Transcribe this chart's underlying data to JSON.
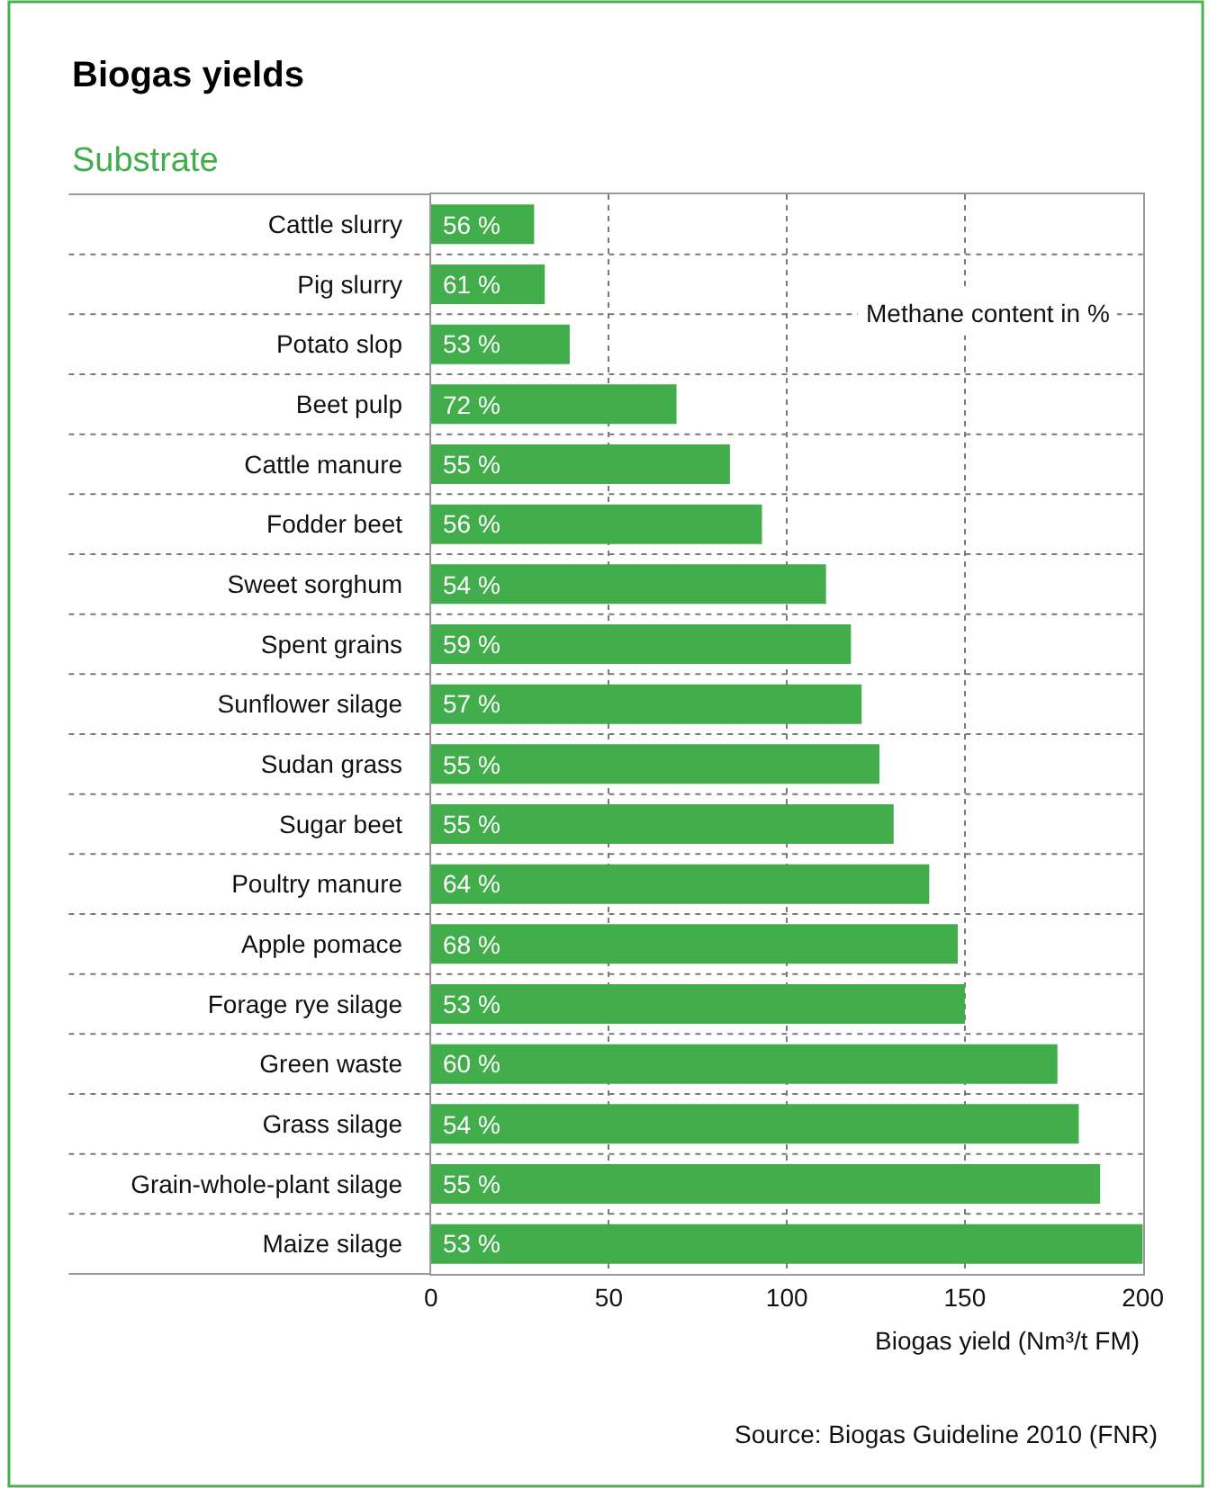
{
  "chart_data": {
    "type": "bar",
    "orientation": "horizontal",
    "title": "Biogas yields",
    "ylabel": "Substrate",
    "xlabel": "Biogas yield (Nm³/t FM)",
    "categories": [
      "Cattle slurry",
      "Pig slurry",
      "Potato slop",
      "Beet pulp",
      "Cattle manure",
      "Fodder beet",
      "Sweet sorghum",
      "Spent grains",
      "Sunflower silage",
      "Sudan grass",
      "Sugar beet",
      "Poultry manure",
      "Apple pomace",
      "Forage rye silage",
      "Green waste",
      "Grass silage",
      "Grain-whole-plant silage",
      "Maize silage"
    ],
    "values": [
      29,
      32,
      39,
      69,
      84,
      93,
      111,
      118,
      121,
      126,
      130,
      140,
      148,
      150,
      176,
      182,
      188,
      200
    ],
    "color": "#42ad4b",
    "xlim": [
      0,
      200
    ],
    "xticks": [
      0,
      50,
      100,
      150,
      200
    ],
    "grid": true,
    "annotations": [
      "Methane content in %",
      "Source: Biogas Guideline 2010 (FNR)",
      {
        "text": "56 %",
        "y": "Cattle slurry"
      },
      {
        "text": "61 %",
        "y": "Pig slurry"
      },
      {
        "text": "53 %",
        "y": "Potato slop"
      },
      {
        "text": "72 %",
        "y": "Beet pulp"
      },
      {
        "text": "55 %",
        "y": "Cattle manure"
      },
      {
        "text": "56 %",
        "y": "Fodder beet"
      },
      {
        "text": "54 %",
        "y": "Sweet sorghum"
      },
      {
        "text": "59 %",
        "y": "Spent grains"
      },
      {
        "text": "57 %",
        "y": "Sunflower silage"
      },
      {
        "text": "55 %",
        "y": "Sudan grass"
      },
      {
        "text": "55 %",
        "y": "Sugar beet"
      },
      {
        "text": "64 %",
        "y": "Poultry manure"
      },
      {
        "text": "68 %",
        "y": "Apple pomace"
      },
      {
        "text": "53 %",
        "y": "Forage rye silage"
      },
      {
        "text": "60 %",
        "y": "Green waste"
      },
      {
        "text": "54 %",
        "y": "Grass silage"
      },
      {
        "text": "55 %",
        "y": "Grain-whole-plant silage"
      },
      {
        "text": "53 %",
        "y": "Maize silage"
      }
    ]
  }
}
